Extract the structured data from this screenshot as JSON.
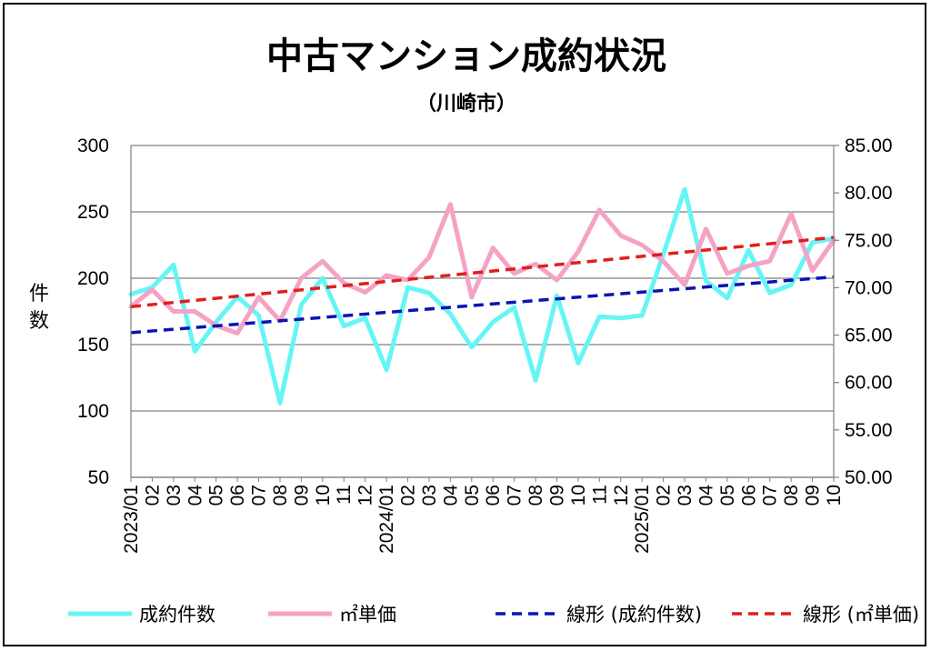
{
  "chart_data": {
    "type": "line",
    "title": "中古マンション成約状況",
    "subtitle": "（川崎市）",
    "ylabel": "件数",
    "ylim": [
      50,
      300
    ],
    "yticks": [
      "300",
      "250",
      "200",
      "150",
      "100",
      "50"
    ],
    "y2lim": [
      50,
      85
    ],
    "y2ticks": [
      "85.00",
      "80.00",
      "75.00",
      "70.00",
      "65.00",
      "60.00",
      "55.00",
      "50.00"
    ],
    "categories": [
      "2023/01",
      "02",
      "03",
      "04",
      "05",
      "06",
      "07",
      "08",
      "09",
      "10",
      "11",
      "12",
      "2024/01",
      "02",
      "03",
      "04",
      "05",
      "06",
      "07",
      "08",
      "09",
      "10",
      "11",
      "12",
      "2025/01",
      "02",
      "03",
      "04",
      "05",
      "06",
      "07",
      "08",
      "09",
      "10"
    ],
    "grid": true,
    "legend_position": "bottom",
    "series": [
      {
        "name": "成約件数",
        "axis": "left",
        "color": "#66F5F5",
        "style": "solid",
        "values": [
          188,
          193,
          210,
          145,
          167,
          186,
          172,
          106,
          180,
          200,
          164,
          170,
          131,
          193,
          189,
          173,
          148,
          167,
          178,
          123,
          187,
          136,
          171,
          170,
          172,
          218,
          267,
          198,
          185,
          221,
          189,
          195,
          227,
          230
        ]
      },
      {
        "name": "㎡単価",
        "axis": "right",
        "color": "#F4A3C4",
        "style": "solid",
        "values": [
          68.0,
          69.8,
          67.5,
          67.5,
          66.0,
          65.2,
          69.0,
          66.5,
          71.0,
          72.8,
          70.5,
          69.5,
          71.3,
          70.8,
          73.2,
          78.8,
          69.0,
          74.2,
          71.5,
          72.5,
          70.8,
          73.8,
          78.2,
          75.5,
          74.5,
          72.8,
          70.3,
          76.2,
          71.5,
          72.3,
          72.8,
          77.8,
          71.8,
          75.0
        ]
      },
      {
        "name": "線形 (成約件数)",
        "axis": "left",
        "color": "#0A14B4",
        "style": "dashed",
        "trend_start": 159,
        "trend_end": 201
      },
      {
        "name": "線形 (㎡単価)",
        "axis": "right",
        "color": "#E01E1E",
        "style": "dashed",
        "trend_start": 68.0,
        "trend_end": 75.3
      }
    ]
  }
}
